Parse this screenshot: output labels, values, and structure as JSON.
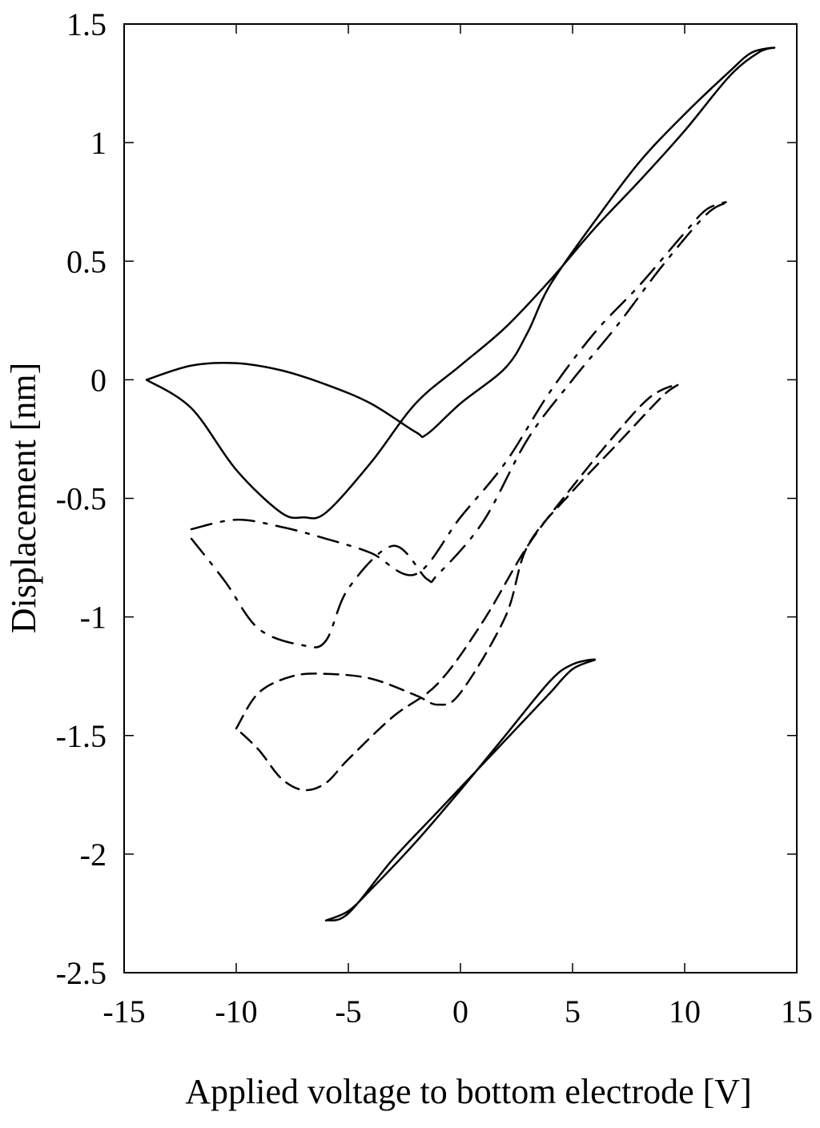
{
  "chart_data": {
    "type": "line",
    "title": "",
    "xlabel": "Applied voltage to bottom electrode [V]",
    "ylabel": "Displacement [nm]",
    "xlim": [
      -15,
      15
    ],
    "ylim": [
      -2.5,
      1.5
    ],
    "xticks": [
      -15,
      -10,
      -5,
      0,
      5,
      10,
      15
    ],
    "yticks": [
      -2.5,
      -2,
      -1.5,
      -1,
      -0.5,
      0,
      0.5,
      1,
      1.5
    ],
    "xtick_labels": [
      "-15",
      "-10",
      "-5",
      "0",
      "5",
      "10",
      "15"
    ],
    "ytick_labels": [
      "-2.5",
      "-2",
      "-1.5",
      "-1",
      "-0.5",
      "0",
      "0.5",
      "1",
      "1.5"
    ],
    "grid": false,
    "legend": "none",
    "series": [
      {
        "style": "solid",
        "points": [
          [
            -14,
            0
          ],
          [
            -12,
            0.06
          ],
          [
            -10,
            0.07
          ],
          [
            -8,
            0.04
          ],
          [
            -6,
            -0.02
          ],
          [
            -4,
            -0.1
          ],
          [
            -2,
            -0.22
          ],
          [
            -1.5,
            -0.23
          ],
          [
            0,
            -0.1
          ],
          [
            2,
            0.05
          ],
          [
            3,
            0.2
          ],
          [
            4,
            0.4
          ],
          [
            6,
            0.67
          ],
          [
            8,
            0.92
          ],
          [
            10,
            1.12
          ],
          [
            12,
            1.3
          ],
          [
            13,
            1.38
          ],
          [
            14,
            1.4
          ],
          [
            13.3,
            1.38
          ],
          [
            12,
            1.28
          ],
          [
            10,
            1.05
          ],
          [
            8,
            0.84
          ],
          [
            6,
            0.64
          ],
          [
            4,
            0.42
          ],
          [
            2,
            0.22
          ],
          [
            0,
            0.06
          ],
          [
            -2,
            -0.1
          ],
          [
            -4,
            -0.35
          ],
          [
            -6,
            -0.56
          ],
          [
            -7,
            -0.58
          ],
          [
            -8,
            -0.56
          ],
          [
            -10,
            -0.38
          ],
          [
            -12,
            -0.12
          ],
          [
            -14,
            0
          ]
        ]
      },
      {
        "style": "dash-dot",
        "points": [
          [
            -12,
            -0.63
          ],
          [
            -10,
            -0.59
          ],
          [
            -8,
            -0.62
          ],
          [
            -6,
            -0.67
          ],
          [
            -4,
            -0.73
          ],
          [
            -2,
            -0.82
          ],
          [
            0,
            -0.58
          ],
          [
            2,
            -0.35
          ],
          [
            4,
            -0.05
          ],
          [
            6,
            0.2
          ],
          [
            8,
            0.4
          ],
          [
            10,
            0.62
          ],
          [
            11,
            0.72
          ],
          [
            12,
            0.75
          ],
          [
            11,
            0.7
          ],
          [
            9,
            0.48
          ],
          [
            7,
            0.23
          ],
          [
            5,
            0
          ],
          [
            3,
            -0.25
          ],
          [
            1,
            -0.6
          ],
          [
            -1,
            -0.82
          ],
          [
            -1.5,
            -0.84
          ],
          [
            -3,
            -0.7
          ],
          [
            -5,
            -0.88
          ],
          [
            -6,
            -1.1
          ],
          [
            -7,
            -1.12
          ],
          [
            -9,
            -1.05
          ],
          [
            -10.5,
            -0.85
          ],
          [
            -12,
            -0.67
          ]
        ]
      },
      {
        "style": "dashed",
        "points": [
          [
            -10,
            -1.47
          ],
          [
            -9,
            -1.32
          ],
          [
            -7.5,
            -1.25
          ],
          [
            -6,
            -1.24
          ],
          [
            -4,
            -1.26
          ],
          [
            -2,
            -1.33
          ],
          [
            -1,
            -1.37
          ],
          [
            0,
            -1.32
          ],
          [
            2,
            -1.0
          ],
          [
            3,
            -0.7
          ],
          [
            5,
            -0.47
          ],
          [
            7,
            -0.27
          ],
          [
            9,
            -0.07
          ],
          [
            9.7,
            -0.02
          ],
          [
            8.5,
            -0.07
          ],
          [
            7,
            -0.22
          ],
          [
            5,
            -0.45
          ],
          [
            3,
            -0.7
          ],
          [
            1,
            -1.02
          ],
          [
            -1,
            -1.28
          ],
          [
            -3,
            -1.42
          ],
          [
            -5,
            -1.6
          ],
          [
            -6,
            -1.7
          ],
          [
            -7,
            -1.73
          ],
          [
            -8,
            -1.68
          ],
          [
            -9,
            -1.56
          ],
          [
            -10,
            -1.47
          ]
        ]
      },
      {
        "style": "solid",
        "points": [
          [
            -6,
            -2.28
          ],
          [
            -5,
            -2.25
          ],
          [
            -3,
            -2.02
          ],
          [
            -1,
            -1.82
          ],
          [
            1,
            -1.62
          ],
          [
            3,
            -1.42
          ],
          [
            4,
            -1.32
          ],
          [
            5,
            -1.22
          ],
          [
            6,
            -1.18
          ],
          [
            5,
            -1.2
          ],
          [
            4,
            -1.27
          ],
          [
            2,
            -1.5
          ],
          [
            0,
            -1.73
          ],
          [
            -2,
            -1.95
          ],
          [
            -4,
            -2.15
          ],
          [
            -5,
            -2.24
          ],
          [
            -6,
            -2.28
          ]
        ]
      }
    ]
  }
}
